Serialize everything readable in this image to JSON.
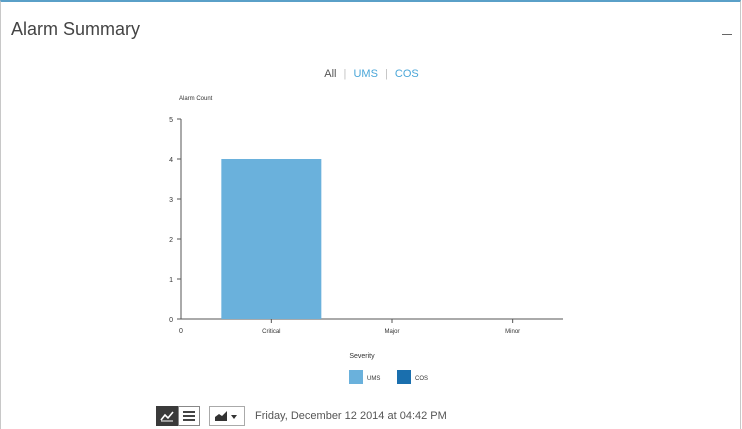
{
  "panel": {
    "title": "Alarm Summary",
    "minimize_icon": "minimize-icon"
  },
  "filters": {
    "all": "All",
    "ums": "UMS",
    "cos": "COS",
    "separator": "|"
  },
  "chart_data": {
    "type": "bar",
    "ylabel": "Alarm Count",
    "xlabel": "Severity",
    "categories": [
      "Critical",
      "Major",
      "Minor"
    ],
    "x_origin_label": "0",
    "ylim": [
      0,
      5
    ],
    "yticks": [
      "0",
      "1",
      "2",
      "3",
      "4",
      "5"
    ],
    "series": [
      {
        "name": "UMS",
        "color": "#6ab1dc",
        "values": [
          4,
          0,
          0
        ]
      },
      {
        "name": "COS",
        "color": "#1a6fae",
        "values": [
          0,
          0,
          0
        ]
      }
    ],
    "legend_placement": "bottom"
  },
  "toolbar": {
    "chart_view_icon": "line-chart-icon",
    "list_view_icon": "list-icon",
    "chart_type_icon": "area-chart-dropdown-icon",
    "timestamp": "Friday, December 12 2014 at 04:42 PM"
  }
}
